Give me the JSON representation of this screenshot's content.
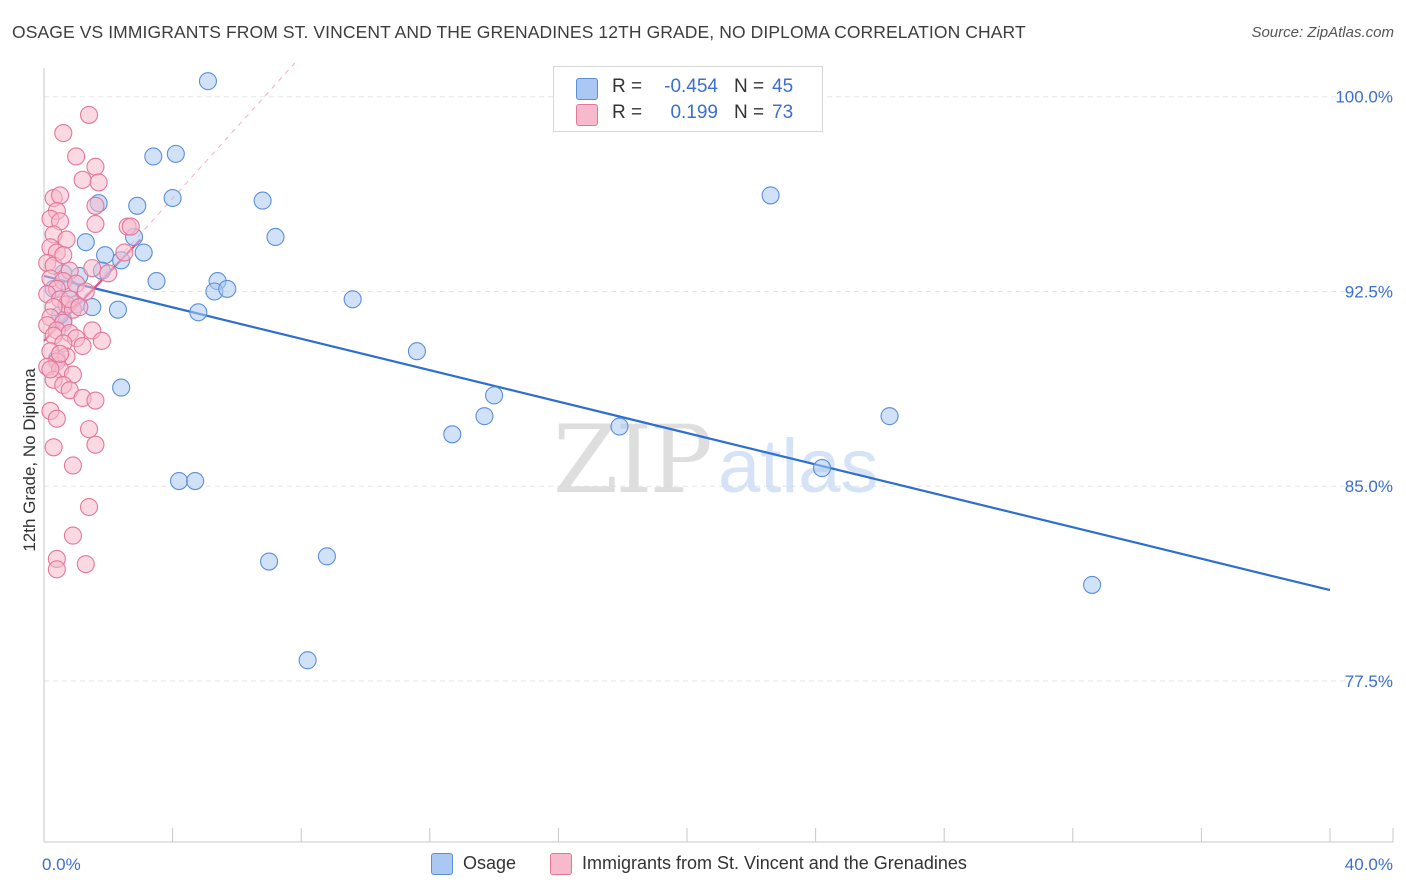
{
  "title": "OSAGE VS IMMIGRANTS FROM ST. VINCENT AND THE GRENADINES 12TH GRADE, NO DIPLOMA CORRELATION CHART",
  "source": "Source: ZipAtlas.com",
  "watermark": {
    "zip": "ZIP",
    "atlas": "atlas"
  },
  "colors": {
    "osage_fill": "#aac8f2",
    "osage_stroke": "#5b8fd8",
    "osage_line": "#2d6fd0",
    "svg_fill": "#f7b9cc",
    "svg_stroke": "#e3779a",
    "svg_line": "#e0507f",
    "axis_text": "#3b6fd0",
    "grid": "#e6e6e6"
  },
  "stats": {
    "r_label": "R =",
    "n_label": "N =",
    "osage": {
      "r": "-0.454",
      "n": "45"
    },
    "immigrants": {
      "r": "0.199",
      "n": "73"
    }
  },
  "legend": {
    "osage": "Osage",
    "immigrants": "Immigrants from St. Vincent and the Grenadines"
  },
  "chart_data": {
    "type": "scatter",
    "xlabel": "",
    "ylabel": "12th Grade, No Diploma",
    "xlim": [
      0,
      40
    ],
    "ylim": [
      71.3,
      101.8
    ],
    "x_tick_labels": [
      {
        "value": 0,
        "label": "0.0%"
      },
      {
        "value": 40,
        "label": "40.0%"
      }
    ],
    "x_minor_ticks": [
      4,
      8,
      12,
      16,
      20,
      24,
      28,
      32,
      36,
      40
    ],
    "y_ticks": [
      {
        "value": 100,
        "label": "100.0%"
      },
      {
        "value": 92.5,
        "label": "92.5%"
      },
      {
        "value": 85,
        "label": "85.0%"
      },
      {
        "value": 77.5,
        "label": "77.5%"
      }
    ],
    "series": [
      {
        "name": "Osage",
        "r": -0.454,
        "n": 45,
        "trend": {
          "x": [
            0,
            40
          ],
          "y": [
            93.1,
            81.0
          ],
          "style": "solid"
        },
        "points": [
          [
            5.1,
            100.6
          ],
          [
            4.1,
            97.8
          ],
          [
            3.4,
            97.7
          ],
          [
            1.7,
            95.9
          ],
          [
            2.9,
            95.8
          ],
          [
            4.0,
            96.1
          ],
          [
            6.8,
            96.0
          ],
          [
            7.2,
            94.6
          ],
          [
            1.3,
            94.4
          ],
          [
            2.8,
            94.6
          ],
          [
            1.9,
            93.9
          ],
          [
            3.1,
            94.0
          ],
          [
            2.4,
            93.7
          ],
          [
            0.6,
            93.2
          ],
          [
            1.8,
            93.3
          ],
          [
            3.5,
            92.9
          ],
          [
            5.4,
            92.9
          ],
          [
            0.3,
            92.6
          ],
          [
            0.8,
            92.6
          ],
          [
            5.3,
            92.5
          ],
          [
            1.0,
            92.0
          ],
          [
            1.5,
            91.9
          ],
          [
            2.3,
            91.8
          ],
          [
            4.8,
            91.7
          ],
          [
            9.6,
            92.2
          ],
          [
            0.6,
            91.4
          ],
          [
            11.6,
            90.2
          ],
          [
            0.4,
            89.9
          ],
          [
            2.4,
            88.8
          ],
          [
            13.7,
            87.7
          ],
          [
            12.7,
            87.0
          ],
          [
            14.0,
            88.5
          ],
          [
            17.9,
            87.3
          ],
          [
            26.3,
            87.7
          ],
          [
            24.2,
            85.7
          ],
          [
            4.2,
            85.2
          ],
          [
            4.7,
            85.2
          ],
          [
            7.0,
            82.1
          ],
          [
            8.8,
            82.3
          ],
          [
            8.2,
            78.3
          ],
          [
            32.6,
            81.2
          ],
          [
            22.6,
            96.2
          ],
          [
            5.7,
            92.6
          ],
          [
            0.5,
            91.6
          ],
          [
            1.1,
            93.1
          ]
        ]
      },
      {
        "name": "Immigrants from St. Vincent and the Grenadines",
        "r": 0.199,
        "n": 73,
        "trend": {
          "x": [
            0,
            3.0
          ],
          "y": [
            90.6,
            94.5
          ],
          "style": "solid"
        },
        "trend_extension": {
          "x": [
            0,
            7.8
          ],
          "y": [
            90.6,
            101.3
          ],
          "style": "dashed"
        },
        "points": [
          [
            1.4,
            99.3
          ],
          [
            0.6,
            98.6
          ],
          [
            1.0,
            97.7
          ],
          [
            1.6,
            97.3
          ],
          [
            1.2,
            96.8
          ],
          [
            1.7,
            96.7
          ],
          [
            0.3,
            96.1
          ],
          [
            0.5,
            96.2
          ],
          [
            0.4,
            95.6
          ],
          [
            1.6,
            95.8
          ],
          [
            0.2,
            95.3
          ],
          [
            0.5,
            95.2
          ],
          [
            2.6,
            95.0
          ],
          [
            1.6,
            95.1
          ],
          [
            2.7,
            95.0
          ],
          [
            0.3,
            94.7
          ],
          [
            0.7,
            94.5
          ],
          [
            0.2,
            94.2
          ],
          [
            0.4,
            94.0
          ],
          [
            2.5,
            94.0
          ],
          [
            0.1,
            93.6
          ],
          [
            0.3,
            93.5
          ],
          [
            1.5,
            93.4
          ],
          [
            0.8,
            93.3
          ],
          [
            2.0,
            93.2
          ],
          [
            0.2,
            93.0
          ],
          [
            0.6,
            92.9
          ],
          [
            1.0,
            92.8
          ],
          [
            0.4,
            92.6
          ],
          [
            1.3,
            92.5
          ],
          [
            0.1,
            92.4
          ],
          [
            0.5,
            92.2
          ],
          [
            0.7,
            92.0
          ],
          [
            0.3,
            91.9
          ],
          [
            0.9,
            91.8
          ],
          [
            0.2,
            91.5
          ],
          [
            0.6,
            91.3
          ],
          [
            0.1,
            91.2
          ],
          [
            0.4,
            91.0
          ],
          [
            0.8,
            90.9
          ],
          [
            1.5,
            91.0
          ],
          [
            0.3,
            90.8
          ],
          [
            1.0,
            90.7
          ],
          [
            0.6,
            90.5
          ],
          [
            1.2,
            90.4
          ],
          [
            1.8,
            90.6
          ],
          [
            0.2,
            90.2
          ],
          [
            0.7,
            90.0
          ],
          [
            0.4,
            89.8
          ],
          [
            0.1,
            89.6
          ],
          [
            0.5,
            89.5
          ],
          [
            0.9,
            89.3
          ],
          [
            0.3,
            89.1
          ],
          [
            0.6,
            88.9
          ],
          [
            0.8,
            88.7
          ],
          [
            1.2,
            88.4
          ],
          [
            1.6,
            88.3
          ],
          [
            0.2,
            87.9
          ],
          [
            0.4,
            87.6
          ],
          [
            1.4,
            87.2
          ],
          [
            1.6,
            86.6
          ],
          [
            0.3,
            86.5
          ],
          [
            0.9,
            85.8
          ],
          [
            1.4,
            84.2
          ],
          [
            0.9,
            83.1
          ],
          [
            0.4,
            82.2
          ],
          [
            1.3,
            82.0
          ],
          [
            0.4,
            81.8
          ],
          [
            0.5,
            90.1
          ],
          [
            0.8,
            92.2
          ],
          [
            1.1,
            91.9
          ],
          [
            0.2,
            89.5
          ],
          [
            0.6,
            93.9
          ]
        ]
      }
    ]
  }
}
